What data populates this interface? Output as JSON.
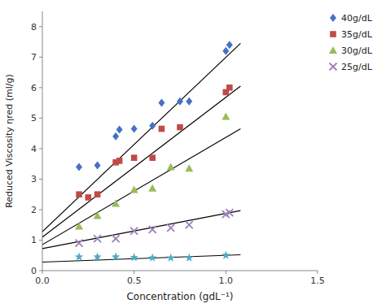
{
  "chart_data": {
    "type": "scatter",
    "x_label": "Concentration (gdL⁻¹)",
    "y_label": "Reduced Viscosity ηred (ml/g)",
    "xlim": [
      0,
      1.5
    ],
    "ylim": [
      0,
      8.5
    ],
    "xticks": [
      {
        "value": 0,
        "label": "0.0"
      },
      0.5,
      {
        "value": 1.0,
        "label": "1.0"
      },
      1.5
    ],
    "yticks": [
      0,
      1,
      2,
      3,
      4,
      5,
      6,
      7,
      8
    ],
    "grid": false,
    "legend": "upper right",
    "series": [
      {
        "name": "40g/dL",
        "type": "scatter",
        "color": "#4472C4",
        "marker": "diamond",
        "x": [
          0.2,
          0.3,
          0.4,
          0.42,
          0.5,
          0.6,
          0.65,
          0.75,
          0.8,
          1.0,
          1.02
        ],
        "values": [
          3.4,
          3.45,
          4.4,
          4.62,
          4.65,
          4.75,
          5.5,
          5.55,
          5.55,
          7.2,
          7.4
        ]
      },
      {
        "name": "35g/dL",
        "type": "scatter",
        "color": "#BE4B48",
        "marker": "square",
        "x": [
          0.2,
          0.25,
          0.3,
          0.4,
          0.42,
          0.5,
          0.6,
          0.65,
          0.75,
          1.0,
          1.02
        ],
        "values": [
          2.5,
          2.4,
          2.5,
          3.55,
          3.6,
          3.7,
          3.7,
          4.65,
          4.7,
          5.85,
          6.0
        ]
      },
      {
        "name": "30g/dL",
        "type": "scatter",
        "color": "#9BBB59",
        "marker": "triangle",
        "x": [
          0.2,
          0.3,
          0.4,
          0.5,
          0.6,
          0.7,
          0.8,
          1.0
        ],
        "values": [
          1.45,
          1.8,
          2.2,
          2.65,
          2.7,
          3.4,
          3.35,
          5.05
        ]
      },
      {
        "name": "25g/dL",
        "type": "scatter",
        "color": "#9E80B8",
        "marker": "x",
        "x": [
          0.2,
          0.3,
          0.4,
          0.5,
          0.6,
          0.7,
          0.8,
          1.0,
          1.02
        ],
        "values": [
          0.9,
          1.05,
          1.05,
          1.3,
          1.35,
          1.4,
          1.5,
          1.85,
          1.9
        ]
      },
      {
        "type": "scatter",
        "color": "#4BACC6",
        "marker": "star",
        "x": [
          0.2,
          0.3,
          0.4,
          0.5,
          0.6,
          0.7,
          0.8,
          1.0
        ],
        "values": [
          0.45,
          0.45,
          0.45,
          0.43,
          0.42,
          0.42,
          0.42,
          0.5
        ]
      },
      {
        "type": "line",
        "color": "black",
        "line_style": "solid",
        "x": [
          0.0,
          1.08
        ],
        "values": [
          1.28,
          7.45
        ]
      },
      {
        "type": "line",
        "color": "black",
        "line_style": "solid",
        "x": [
          0.0,
          1.08
        ],
        "values": [
          1.1,
          6.05
        ]
      },
      {
        "type": "line",
        "color": "black",
        "line_style": "solid",
        "x": [
          0.0,
          1.08
        ],
        "values": [
          0.85,
          4.65
        ]
      },
      {
        "type": "line",
        "color": "black",
        "line_style": "solid",
        "x": [
          0.0,
          1.08
        ],
        "values": [
          0.72,
          1.97
        ]
      },
      {
        "type": "line",
        "color": "black",
        "line_style": "solid",
        "x": [
          0.0,
          1.08
        ],
        "values": [
          0.28,
          0.52
        ]
      }
    ]
  }
}
